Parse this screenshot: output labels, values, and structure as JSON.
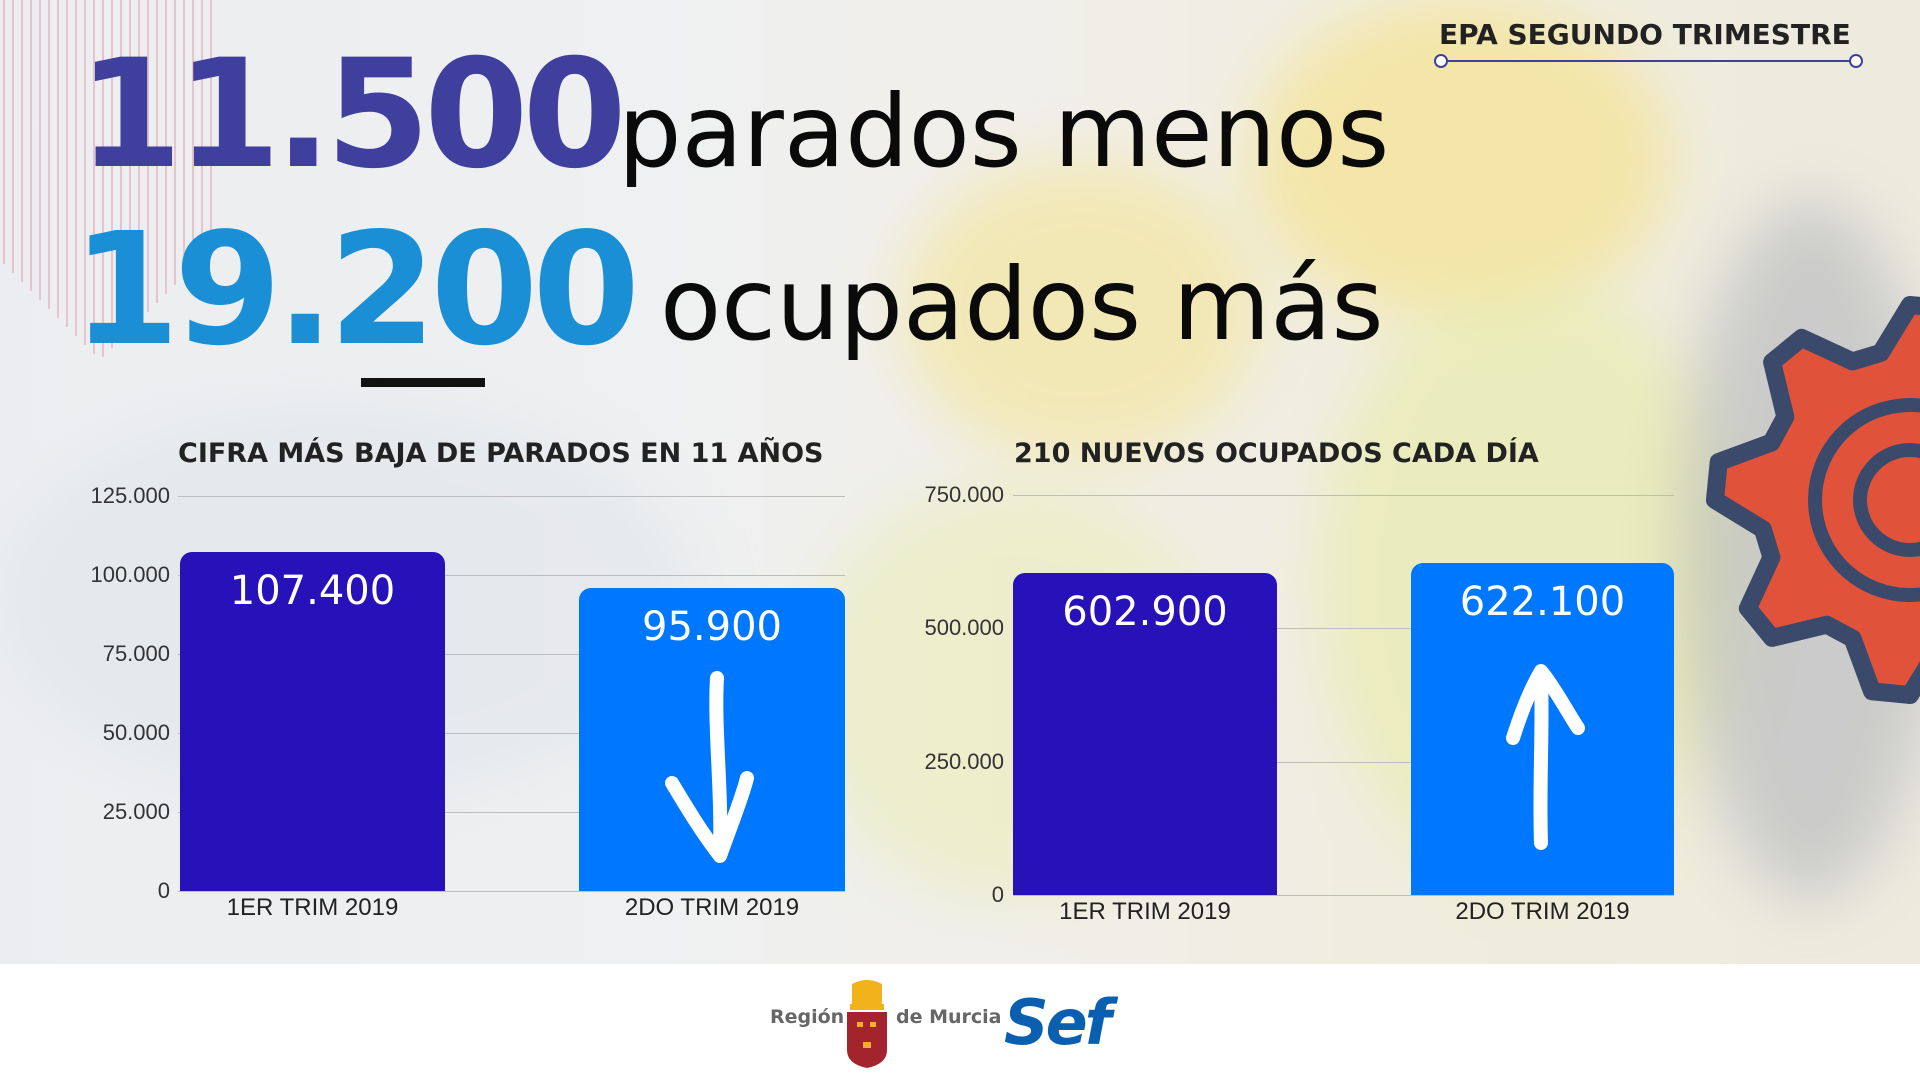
{
  "header": {
    "tag": "EPA SEGUNDO TRIMESTRE",
    "line1_number": "11.500",
    "line1_text": "parados menos",
    "line2_number": "19.200",
    "line2_text": "ocupados más"
  },
  "colors": {
    "number1": "#3f3f9e",
    "number2": "#1b8fd6",
    "bar_q1": "#2711b8",
    "bar_q2": "#0077ff",
    "tag_line": "#3f3f9e",
    "gear": "#e0533a",
    "gear_outline": "#3b4a6b"
  },
  "chart_data": [
    {
      "type": "bar",
      "title": "CIFRA MÁS BAJA DE PARADOS EN 11 AÑOS",
      "categories": [
        "1ER TRIM 2019",
        "2DO TRIM 2019"
      ],
      "values": [
        107400,
        95900
      ],
      "data_labels": [
        "107.400",
        "95.900"
      ],
      "yticks": [
        "0",
        "25.000",
        "50.000",
        "75.000",
        "100.000",
        "125.000"
      ],
      "ytick_values": [
        0,
        25000,
        50000,
        75000,
        100000,
        125000
      ],
      "ylim": [
        0,
        125000
      ],
      "grid": true,
      "annotation_icon": "arrow-down-icon"
    },
    {
      "type": "bar",
      "title": "210 NUEVOS OCUPADOS CADA DÍA",
      "categories": [
        "1ER TRIM 2019",
        "2DO TRIM 2019"
      ],
      "values": [
        602900,
        622100
      ],
      "data_labels": [
        "602.900",
        "622.100"
      ],
      "yticks": [
        "0",
        "250.000",
        "500.000",
        "750.000"
      ],
      "ytick_values": [
        0,
        250000,
        500000,
        750000
      ],
      "ylim": [
        0,
        750000
      ],
      "grid": true,
      "annotation_icon": "arrow-up-icon"
    }
  ],
  "footer": {
    "region_left": "Región",
    "region_right": "de Murcia",
    "logo2": "Sef"
  }
}
